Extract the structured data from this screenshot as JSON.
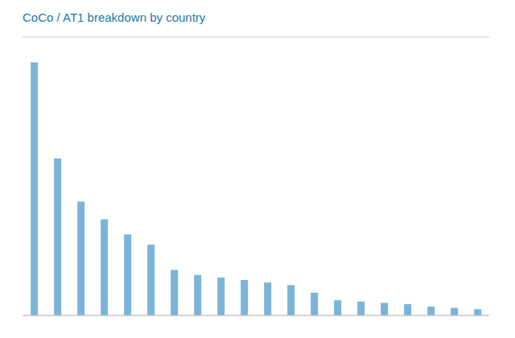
{
  "chart_data": {
    "type": "bar",
    "title": "CoCo / AT1 breakdown by country",
    "values": [
      100,
      62,
      45,
      38,
      32,
      28,
      18,
      16,
      15,
      14,
      13,
      12,
      9,
      6,
      5.5,
      5,
      4.5,
      3.5,
      3,
      2.5
    ],
    "color": "#7ab4d8",
    "ylim": [
      0,
      110
    ],
    "yticks": [
      0,
      18.333333333333332,
      36.666666666666664,
      55,
      73.33333333333333,
      91.66666666666666,
      110
    ],
    "grid": true,
    "tick_labels": false
  }
}
